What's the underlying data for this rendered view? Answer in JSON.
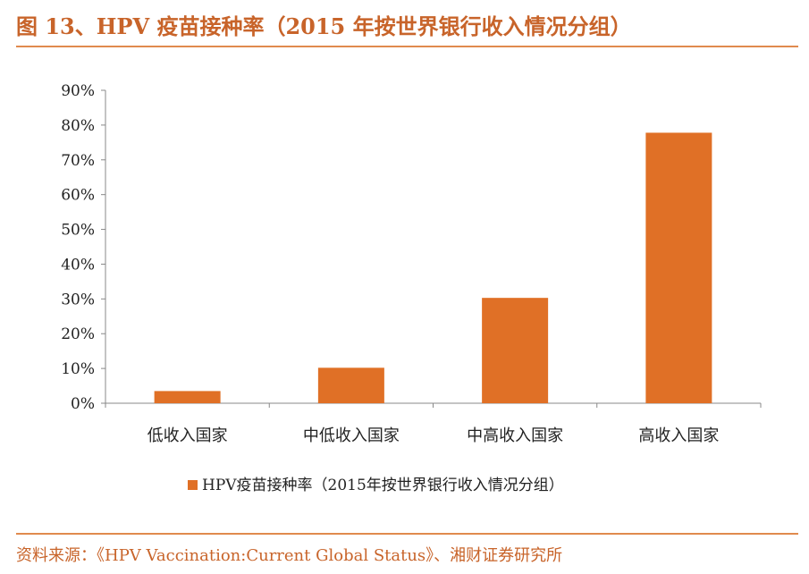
{
  "figure_title": "图 13、HPV 疫苗接种率（2015 年按世界银行收入情况分组）",
  "source": "资料来源：《HPV Vaccination:Current Global Status》、湘财证券研究所",
  "colors": {
    "bar": "#e07026",
    "axis": "#888888",
    "title": "#c8642a"
  },
  "chart_data": {
    "type": "bar",
    "categories": [
      "低收入国家",
      "中低收入国家",
      "中高收入国家",
      "高收入国家"
    ],
    "series": [
      {
        "name": "HPV疫苗接种率（2015年按世界银行收入情况分组）",
        "values": [
          3.5,
          10.2,
          30.3,
          77.8
        ]
      }
    ],
    "y_ticks": [
      "0%",
      "10%",
      "20%",
      "30%",
      "40%",
      "50%",
      "60%",
      "70%",
      "80%",
      "90%"
    ],
    "ylim": [
      0,
      90
    ],
    "y_unit": "%",
    "grid": false,
    "legend_position": "bottom"
  }
}
